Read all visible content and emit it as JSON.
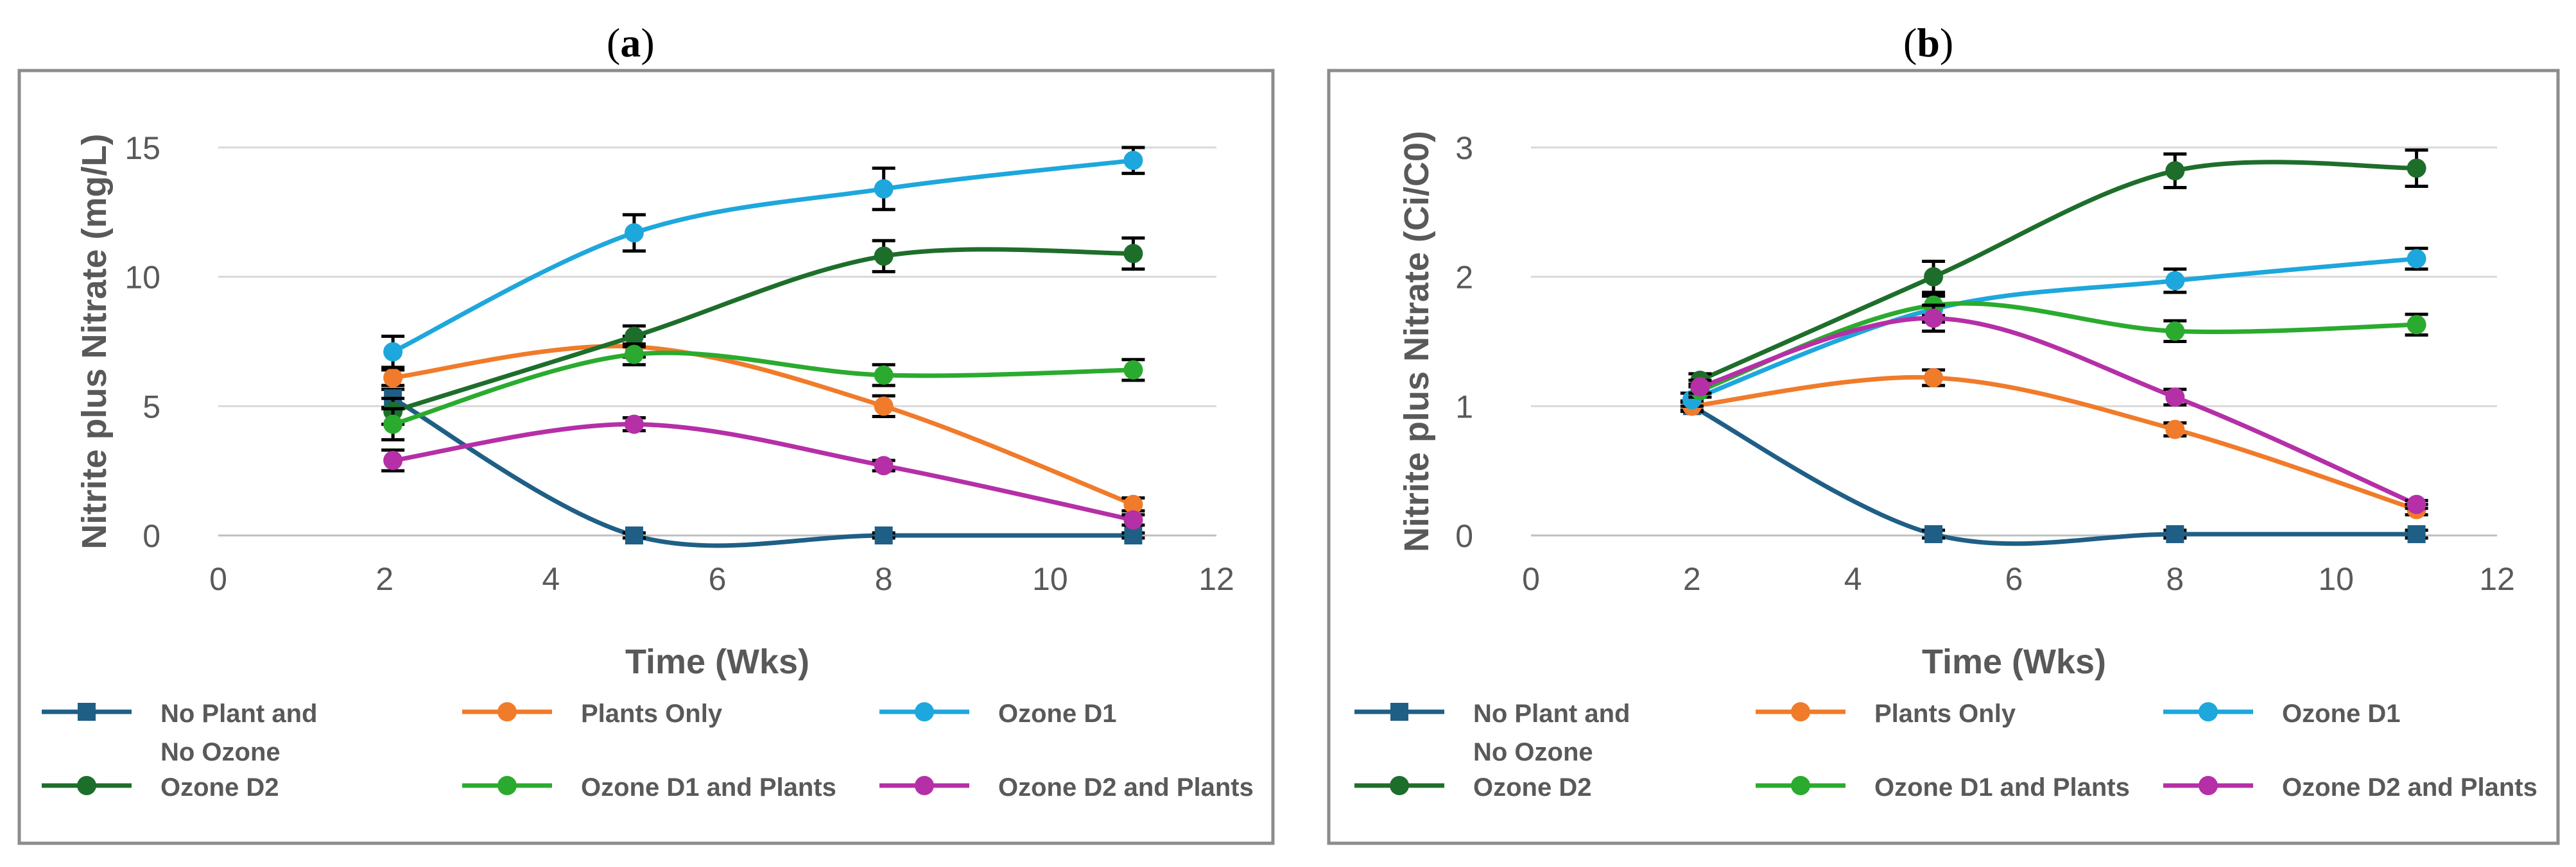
{
  "chart_data": [
    {
      "type": "line",
      "panel_label": "a",
      "xlabel": "Time (Wks)",
      "ylabel": "Nitrite plus Nitrate (mg/L)",
      "xlim": [
        0,
        12
      ],
      "ylim": [
        0,
        15
      ],
      "xticks": [
        "0",
        "2",
        "4",
        "6",
        "8",
        "10",
        "12"
      ],
      "yticks": [
        "0",
        "5",
        "10",
        "15"
      ],
      "grid": "horizontal",
      "legend_position": "bottom",
      "series": [
        {
          "name": "No Plant and No Ozone",
          "color": "#1f5f86",
          "marker": "square",
          "x": [
            2.1,
            5,
            8,
            11
          ],
          "y": [
            5.3,
            0.0,
            0.0,
            0.0
          ],
          "err": [
            0.35,
            0.1,
            0.1,
            0.1
          ]
        },
        {
          "name": "Plants Only",
          "color": "#f07b2a",
          "marker": "circle",
          "x": [
            2.1,
            5,
            8,
            11
          ],
          "y": [
            6.1,
            7.3,
            5.0,
            1.2
          ],
          "err": [
            0.3,
            0.4,
            0.4,
            0.25
          ]
        },
        {
          "name": "Ozone D1",
          "color": "#1ea7dc",
          "marker": "circle",
          "x": [
            2.1,
            5,
            8,
            11
          ],
          "y": [
            7.1,
            11.7,
            13.4,
            14.5
          ],
          "err": [
            0.6,
            0.7,
            0.8,
            0.5
          ]
        },
        {
          "name": "Ozone D2",
          "color": "#1e6e2b",
          "marker": "circle",
          "x": [
            2.1,
            5,
            8,
            11
          ],
          "y": [
            4.8,
            7.7,
            10.8,
            10.9
          ],
          "err": [
            0.5,
            0.4,
            0.6,
            0.6
          ]
        },
        {
          "name": "Ozone D1 and Plants",
          "color": "#2aab2f",
          "marker": "circle",
          "x": [
            2.1,
            5,
            8,
            11
          ],
          "y": [
            4.3,
            7.0,
            6.2,
            6.4
          ],
          "err": [
            0.6,
            0.4,
            0.4,
            0.4
          ]
        },
        {
          "name": "Ozone D2 and Plants",
          "color": "#b52fa7",
          "marker": "circle",
          "x": [
            2.1,
            5,
            8,
            11
          ],
          "y": [
            2.9,
            4.3,
            2.7,
            0.6
          ],
          "err": [
            0.4,
            0.25,
            0.2,
            0.2
          ]
        }
      ]
    },
    {
      "type": "line",
      "panel_label": "b",
      "xlabel": "Time (Wks)",
      "ylabel": "Nitrite plus Nitrate (Ci/C0)",
      "xlim": [
        0,
        12
      ],
      "ylim": [
        0,
        3
      ],
      "xticks": [
        "0",
        "2",
        "4",
        "6",
        "8",
        "10",
        "12"
      ],
      "yticks": [
        "0",
        "1",
        "2",
        "3"
      ],
      "grid": "horizontal",
      "legend_position": "bottom",
      "series": [
        {
          "name": "No Plant and No Ozone",
          "color": "#1f5f86",
          "marker": "square",
          "x": [
            2,
            5,
            8,
            11
          ],
          "y": [
            1.0,
            0.01,
            0.01,
            0.01
          ],
          "err": [
            0.03,
            0.03,
            0.03,
            0.03
          ]
        },
        {
          "name": "Plants Only",
          "color": "#f07b2a",
          "marker": "circle",
          "x": [
            2,
            5,
            8,
            11
          ],
          "y": [
            1.0,
            1.22,
            0.82,
            0.2
          ],
          "err": [
            0.04,
            0.06,
            0.05,
            0.04
          ]
        },
        {
          "name": "Ozone D1",
          "color": "#1ea7dc",
          "marker": "circle",
          "x": [
            2,
            5,
            8,
            11
          ],
          "y": [
            1.05,
            1.75,
            1.97,
            2.14
          ],
          "err": [
            0.05,
            0.1,
            0.09,
            0.08
          ]
        },
        {
          "name": "Ozone D2",
          "color": "#1e6e2b",
          "marker": "circle",
          "x": [
            2.1,
            5,
            8,
            11
          ],
          "y": [
            1.2,
            2.0,
            2.82,
            2.84
          ],
          "err": [
            0.05,
            0.12,
            0.13,
            0.14
          ]
        },
        {
          "name": "Ozone D1 and Plants",
          "color": "#2aab2f",
          "marker": "circle",
          "x": [
            2.1,
            5,
            8,
            11
          ],
          "y": [
            1.12,
            1.78,
            1.58,
            1.63
          ],
          "err": [
            0.05,
            0.08,
            0.08,
            0.08
          ]
        },
        {
          "name": "Ozone D2 and Plants",
          "color": "#b52fa7",
          "marker": "circle",
          "x": [
            2.1,
            5,
            8,
            11
          ],
          "y": [
            1.15,
            1.68,
            1.07,
            0.24
          ],
          "err": [
            0.05,
            0.1,
            0.06,
            0.03
          ]
        }
      ]
    }
  ]
}
